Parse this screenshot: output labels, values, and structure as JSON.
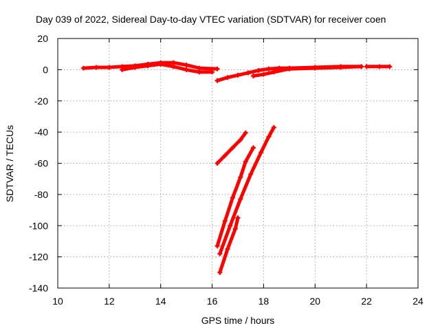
{
  "chart_data": {
    "type": "scatter",
    "title": "Day 039 of 2022, Sidereal Day-to-day VTEC variation (SDTVAR) for receiver coen",
    "xlabel": "GPS time / hours",
    "ylabel": "SDTVAR / TECUs",
    "xlim": [
      10,
      24
    ],
    "ylim": [
      -140,
      20
    ],
    "xticks": [
      10,
      12,
      14,
      16,
      18,
      20,
      22,
      24
    ],
    "yticks": [
      -140,
      -120,
      -100,
      -80,
      -60,
      -40,
      -20,
      0,
      20
    ],
    "xtick_labels": [
      "10",
      "12",
      "14",
      "16",
      "18",
      "20",
      "22",
      "24"
    ],
    "ytick_labels": [
      "-140",
      "-120",
      "-100",
      "-80",
      "-60",
      "-40",
      "-20",
      "0",
      "20"
    ],
    "grid": true,
    "marker": "plus",
    "color": "#ff0000",
    "series": [
      {
        "x": [
          11.0,
          11.5,
          12.0,
          12.5,
          13.0,
          13.5,
          14.0,
          14.5,
          15.0,
          15.5,
          16.2
        ],
        "y": [
          1,
          1.5,
          1.5,
          2,
          2.5,
          3.5,
          4.5,
          4.5,
          3,
          1,
          0.5
        ]
      },
      {
        "x": [
          12.5,
          13.0,
          13.5,
          14.0,
          14.5,
          15.0,
          15.5,
          16.0
        ],
        "y": [
          0,
          1.5,
          2.5,
          3.5,
          2,
          0,
          -1.5,
          -1.5
        ]
      },
      {
        "x": [
          16.2,
          16.6,
          17.0,
          17.4,
          17.8,
          18.2,
          18.6,
          19.0,
          20.0,
          21.0,
          21.8
        ],
        "y": [
          -7,
          -5,
          -3.5,
          -2,
          -0.5,
          0.5,
          1,
          1,
          1.5,
          2,
          2
        ]
      },
      {
        "x": [
          17.6,
          18.0,
          18.4,
          19.0,
          20.0,
          21.0,
          21.8
        ],
        "y": [
          -4,
          -3,
          -1.5,
          0.5,
          1,
          1.5,
          2
        ]
      },
      {
        "x": [
          22.0,
          22.5,
          22.9
        ],
        "y": [
          2,
          2,
          2
        ]
      },
      {
        "x": [
          16.2,
          16.5,
          16.8,
          17.1,
          17.3
        ],
        "y": [
          -60,
          -55,
          -50,
          -45,
          -40.5
        ]
      },
      {
        "x": [
          16.2,
          16.5,
          16.8,
          17.1,
          17.3,
          17.6
        ],
        "y": [
          -113,
          -97,
          -82,
          -69,
          -59,
          -50
        ]
      },
      {
        "x": [
          16.3,
          16.7,
          17.1,
          17.5,
          17.9,
          18.2,
          18.4
        ],
        "y": [
          -118,
          -100,
          -83,
          -67,
          -53,
          -43,
          -37
        ]
      },
      {
        "x": [
          16.3,
          16.6,
          16.9,
          17.0
        ],
        "y": [
          -130,
          -115,
          -102,
          -95
        ]
      }
    ]
  }
}
